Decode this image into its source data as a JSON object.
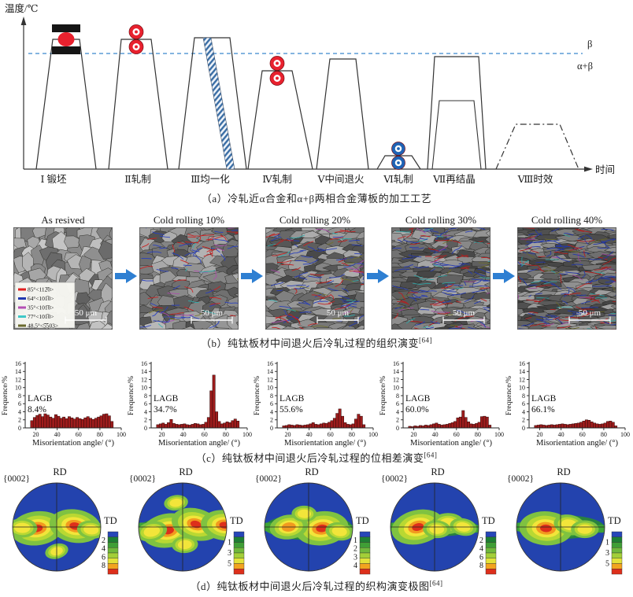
{
  "panel_a": {
    "y_axis_label": "温度/℃",
    "x_axis_label": "时间",
    "phase_upper": "β",
    "phase_lower": "α+β",
    "caption": "（a）冷轧近α合金和α+β两相合金薄板的加工工艺",
    "stages": [
      {
        "label": "Ⅰ 锻坯"
      },
      {
        "label": "Ⅱ轧制"
      },
      {
        "label": "Ⅲ均一化"
      },
      {
        "label": "Ⅳ轧制"
      },
      {
        "label": "Ⅴ中间退火"
      },
      {
        "label": "Ⅵ轧制"
      },
      {
        "label": "Ⅶ再结晶"
      },
      {
        "label": "Ⅷ时效"
      }
    ],
    "colors": {
      "phase_line": "#5b9bd5",
      "roller_red": "#e8212e",
      "roller_blue": "#1f63b5",
      "hatch": "#3b6ea5",
      "outline": "#333333"
    }
  },
  "panel_b": {
    "caption": "（b）纯钛板材中间退火后冷轧过程的组织演变",
    "ref": "[64]",
    "scale_bar_label": "50 μm",
    "legend": [
      {
        "color": "#e01f1f",
        "label": "85°<112̅0>"
      },
      {
        "color": "#2038b0",
        "label": "64°<101̅0>"
      },
      {
        "color": "#b44fb4",
        "label": "35°<101̅0>"
      },
      {
        "color": "#3fc8c8",
        "label": "77°<101̅0>"
      },
      {
        "color": "#6a6a2e",
        "label": "48.5°<5̅503>"
      }
    ],
    "items": [
      {
        "title": "As resived",
        "level": 0
      },
      {
        "title": "Cold rolling 10%",
        "level": 1
      },
      {
        "title": "Cold rolling 20%",
        "level": 2
      },
      {
        "title": "Cold rolling 30%",
        "level": 3
      },
      {
        "title": "Cold rolling 40%",
        "level": 4
      }
    ]
  },
  "panel_c": {
    "caption": "（c）纯钛板材中间退火后冷轧过程的位相差演变",
    "ref": "[64]"
  },
  "panel_d": {
    "caption": "（d）纯钛板材中间退火后冷轧过程的织构演变极图",
    "ref": "[64]",
    "colorbar_colors": [
      "#2646b8",
      "#1e7f33",
      "#3f9e36",
      "#6fb83c",
      "#a3cf38",
      "#e3e23a",
      "#f2a41f",
      "#dd2f1b"
    ],
    "disc_color": "#2343ae",
    "items": [
      {
        "plane": "{0002}",
        "rd": "RD",
        "td": "TD",
        "scale": [
          2,
          4,
          6,
          8
        ],
        "band_half_width": 0.14,
        "spots": [
          [
            -0.45,
            0.03,
            1.0
          ],
          [
            0.42,
            -0.02,
            0.97
          ],
          [
            -0.78,
            0.02,
            0.38
          ],
          [
            0.78,
            0.06,
            0.33
          ],
          [
            0.0,
            0.55,
            0.2
          ]
        ]
      },
      {
        "plane": "{0002}",
        "rd": "RD",
        "td": "TD",
        "scale": [
          1,
          3,
          5
        ],
        "band_half_width": 0.17,
        "spots": [
          [
            -0.33,
            0.08,
            1.0
          ],
          [
            0.3,
            -0.06,
            0.9
          ],
          [
            0.95,
            -0.04,
            0.85
          ],
          [
            -0.7,
            0.1,
            0.4
          ],
          [
            0.05,
            0.4,
            0.28
          ],
          [
            -0.15,
            -0.55,
            0.22
          ]
        ]
      },
      {
        "plane": "{0002}",
        "rd": "RD",
        "td": "TD",
        "scale": [
          1,
          2,
          3,
          4
        ],
        "band_half_width": 0.22,
        "spots": [
          [
            0.3,
            0.03,
            1.0
          ],
          [
            -0.45,
            0.0,
            0.6
          ],
          [
            0.7,
            0.1,
            0.33
          ],
          [
            -0.1,
            -0.3,
            0.25
          ]
        ]
      },
      {
        "plane": "{0002}",
        "rd": "RD",
        "td": "TD",
        "scale": [
          2,
          4,
          6,
          8
        ],
        "band_half_width": 0.16,
        "spots": [
          [
            -0.38,
            0.0,
            1.0
          ],
          [
            0.3,
            -0.08,
            0.45
          ],
          [
            0.05,
            0.05,
            0.32
          ],
          [
            0.65,
            0.0,
            0.3
          ]
        ]
      },
      {
        "plane": "{0002}",
        "rd": "RD",
        "td": "TD",
        "scale": [
          1,
          3,
          5
        ],
        "band_half_width": 0.2,
        "spots": [
          [
            -0.33,
            0.03,
            1.0
          ],
          [
            0.2,
            -0.05,
            0.42
          ],
          [
            0.55,
            0.05,
            0.32
          ]
        ]
      }
    ]
  },
  "chart_data": [
    {
      "type": "bar",
      "ylabel": "Frequence/%",
      "xlabel": "Misorientation angle/ (°)",
      "xlim": [
        10,
        100
      ],
      "ylim": [
        0,
        16
      ],
      "x_ticks": [
        20,
        40,
        60,
        80,
        100
      ],
      "y_ticks": [
        0,
        2,
        4,
        6,
        8,
        10,
        12,
        14,
        16
      ],
      "bin_start": 15,
      "bin_width": 2.5,
      "lagb_label": "LAGB",
      "lagb_value": "8.4%",
      "values": [
        1.8,
        2.6,
        3.1,
        3.4,
        2.8,
        3.5,
        3.2,
        2.7,
        2.4,
        3.3,
        2.9,
        2.4,
        2.7,
        2.3,
        2.8,
        2.5,
        2.2,
        2.6,
        2.3,
        2.1,
        2.5,
        2.8,
        2.4,
        2.1,
        2.4,
        2.7,
        3.0,
        3.4,
        3.5,
        3.0,
        1.6
      ]
    },
    {
      "type": "bar",
      "ylabel": "Frequence/%",
      "xlabel": "Misorientation angle/ (°)",
      "xlim": [
        10,
        100
      ],
      "ylim": [
        0,
        16
      ],
      "x_ticks": [
        20,
        40,
        60,
        80,
        100
      ],
      "y_ticks": [
        0,
        2,
        4,
        6,
        8,
        10,
        12,
        14,
        16
      ],
      "bin_start": 15,
      "bin_width": 2.5,
      "lagb_label": "LAGB",
      "lagb_value": "34.7%",
      "values": [
        0.8,
        1.0,
        1.2,
        0.9,
        1.3,
        2.1,
        1.1,
        0.9,
        0.8,
        0.9,
        1.0,
        0.8,
        0.7,
        0.9,
        1.1,
        1.0,
        0.8,
        0.9,
        1.4,
        2.6,
        9.2,
        13.1,
        4.0,
        1.6,
        1.0,
        1.2,
        1.5,
        1.3,
        1.8,
        2.2,
        1.7
      ]
    },
    {
      "type": "bar",
      "ylabel": "Frequence/%",
      "xlabel": "Misorientation angle/ (°)",
      "xlim": [
        10,
        100
      ],
      "ylim": [
        0,
        16
      ],
      "x_ticks": [
        20,
        40,
        60,
        80,
        100
      ],
      "y_ticks": [
        0,
        2,
        4,
        6,
        8,
        10,
        12,
        14,
        16
      ],
      "bin_start": 15,
      "bin_width": 2.5,
      "lagb_label": "LAGB",
      "lagb_value": "55.6%",
      "values": [
        0.5,
        0.6,
        0.8,
        0.7,
        0.6,
        0.8,
        0.7,
        0.6,
        0.7,
        0.8,
        1.0,
        1.3,
        0.9,
        0.8,
        1.0,
        1.2,
        1.1,
        1.4,
        1.8,
        2.4,
        3.6,
        4.7,
        2.9,
        1.3,
        0.9,
        0.8,
        1.0,
        2.2,
        3.4,
        2.9,
        0.8
      ]
    },
    {
      "type": "bar",
      "ylabel": "Frequence/%",
      "xlabel": "Misorientation angle/ (°)",
      "xlim": [
        10,
        100
      ],
      "ylim": [
        0,
        16
      ],
      "x_ticks": [
        20,
        40,
        60,
        80,
        100
      ],
      "y_ticks": [
        0,
        2,
        4,
        6,
        8,
        10,
        12,
        14,
        16
      ],
      "bin_start": 15,
      "bin_width": 2.5,
      "lagb_label": "LAGB",
      "lagb_value": "60.0%",
      "values": [
        0.4,
        0.3,
        0.5,
        0.4,
        0.6,
        0.5,
        0.7,
        0.6,
        0.8,
        1.0,
        1.2,
        0.9,
        0.7,
        0.8,
        0.9,
        1.1,
        1.3,
        1.6,
        2.5,
        2.7,
        4.3,
        2.6,
        1.5,
        1.0,
        0.9,
        1.1,
        1.4,
        2.8,
        2.9,
        2.7,
        0.7
      ]
    },
    {
      "type": "bar",
      "ylabel": "Frequence/%",
      "xlabel": "Misorientation angle/ (°)",
      "xlim": [
        10,
        100
      ],
      "ylim": [
        0,
        16
      ],
      "x_ticks": [
        20,
        40,
        60,
        80,
        100
      ],
      "y_ticks": [
        0,
        2,
        4,
        6,
        8,
        10,
        12,
        14,
        16
      ],
      "bin_start": 15,
      "bin_width": 2.5,
      "lagb_label": "LAGB",
      "lagb_value": "66.1%",
      "values": [
        0.6,
        0.7,
        0.8,
        0.7,
        0.6,
        0.7,
        0.8,
        0.7,
        0.8,
        0.9,
        1.0,
        0.9,
        0.8,
        0.9,
        1.0,
        1.1,
        1.2,
        1.4,
        1.7,
        2.0,
        1.9,
        1.5,
        1.2,
        1.0,
        0.9,
        1.0,
        1.2,
        1.6,
        1.7,
        1.4,
        0.5
      ]
    }
  ]
}
